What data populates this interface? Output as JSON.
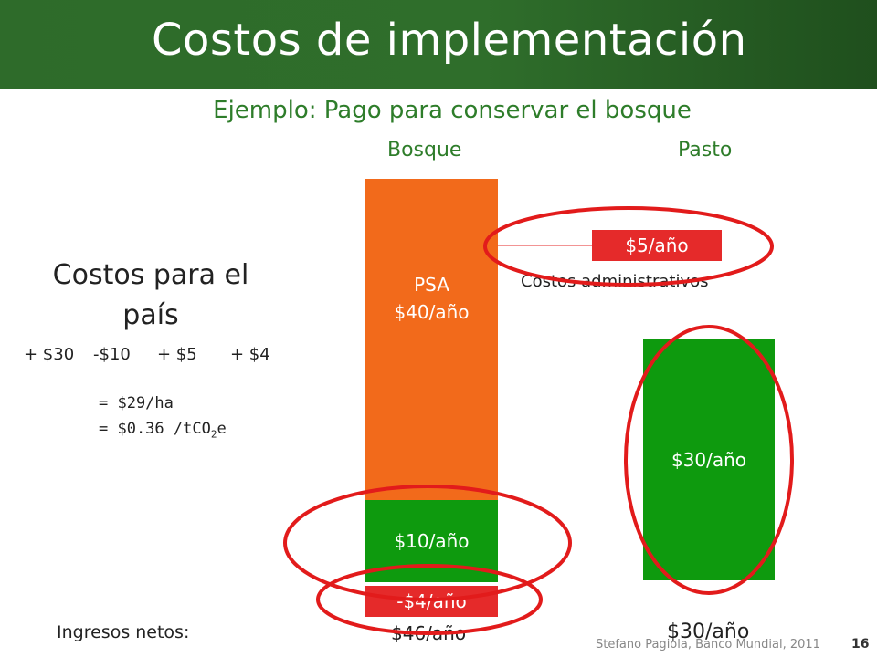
{
  "slide": {
    "title": "Costos de implementación",
    "subtitle": "Ejemplo: Pago para conservar el bosque",
    "footer_credit": "Stefano Pagiola, Banco Mundial, 2011",
    "page_number": "16"
  },
  "columns": {
    "bosque": "Bosque",
    "pasto": "Pasto"
  },
  "bars": {
    "psa_label": "PSA",
    "psa_value": "$40/año",
    "forest_income": "$10/año",
    "forest_cost": "-$4/año",
    "admin_cost": "$5/año",
    "admin_label": "Costos administrativos",
    "pasture_income": "$30/año"
  },
  "net": {
    "label": "Ingresos netos:",
    "bosque": "$46/año",
    "pasto": "$30/año"
  },
  "country_costs": {
    "title": "Costos para el país",
    "terms": [
      "+ $30",
      "-$10",
      "+ $5",
      "+ $4"
    ],
    "per_ha": "= $29/ha",
    "per_tco2_prefix": "= $0.36 /tCO",
    "per_tco2_sub": "2",
    "per_tco2_suffix": "e"
  },
  "colors": {
    "header_green": "#2e6b2a",
    "accent_green_text": "#2e7d2a",
    "orange": "#f26a1b",
    "green": "#0e9a0e",
    "red": "#e52a2a"
  }
}
